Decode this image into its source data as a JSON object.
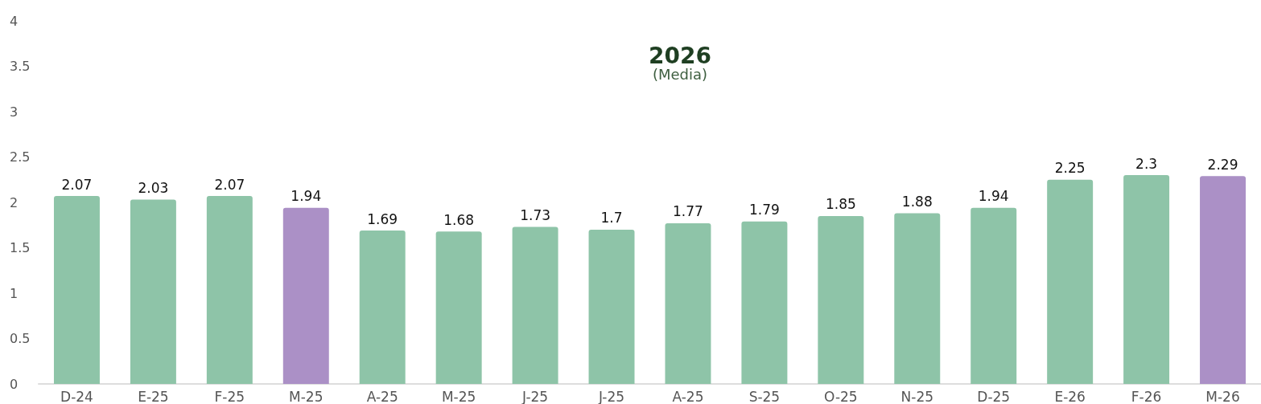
{
  "chart_data": {
    "type": "bar",
    "title": "2026",
    "subtitle": "(Media)",
    "categories": [
      "D-24",
      "E-25",
      "F-25",
      "M-25",
      "A-25",
      "M-25",
      "J-25",
      "J-25",
      "A-25",
      "S-25",
      "O-25",
      "N-25",
      "D-25",
      "E-26",
      "F-26",
      "M-26"
    ],
    "values": [
      2.07,
      2.03,
      2.07,
      1.94,
      1.69,
      1.68,
      1.73,
      1.7,
      1.77,
      1.79,
      1.85,
      1.88,
      1.94,
      2.25,
      2.3,
      2.29
    ],
    "colors": [
      "#8ec4a8",
      "#8ec4a8",
      "#8ec4a8",
      "#ab90c6",
      "#8ec4a8",
      "#8ec4a8",
      "#8ec4a8",
      "#8ec4a8",
      "#8ec4a8",
      "#8ec4a8",
      "#8ec4a8",
      "#8ec4a8",
      "#8ec4a8",
      "#8ec4a8",
      "#8ec4a8",
      "#ab90c6"
    ],
    "ylim": [
      0,
      4
    ],
    "yticks": [
      0,
      0.5,
      1,
      1.5,
      2,
      2.5,
      3,
      3.5,
      4
    ],
    "grid": false,
    "data_labels": true
  }
}
